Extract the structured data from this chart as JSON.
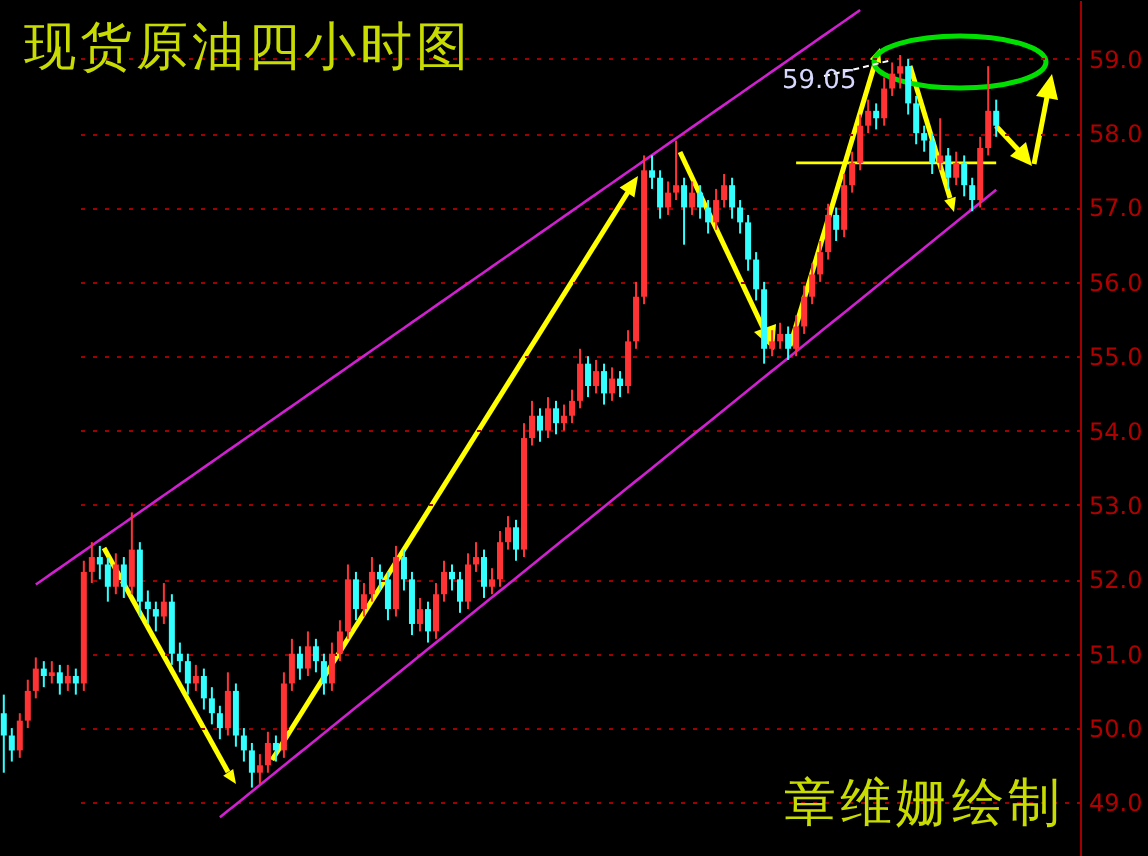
{
  "chart_data": {
    "type": "candlestick",
    "title": "现货原油四小时图",
    "annotations": [
      "59.05",
      "章维姗绘制"
    ],
    "series": [
      {
        "type": "line",
        "color": "#d020d0",
        "values": [
          null,
          null,
          null,
          null,
          51.93,
          52.005,
          52.08,
          52.155,
          52.23,
          52.305,
          52.38,
          52.455,
          52.53,
          52.605,
          52.68,
          52.755,
          52.83,
          52.905,
          52.98,
          53.055,
          53.13,
          53.205,
          53.28,
          53.355,
          53.43,
          53.505,
          53.58,
          53.655,
          53.73,
          53.805,
          53.88,
          53.955,
          54.03,
          54.105,
          54.18,
          54.255,
          54.33,
          54.405,
          54.48,
          54.555,
          54.63,
          54.705,
          54.78,
          54.855,
          54.93,
          55.005,
          55.08,
          55.155,
          55.23,
          55.305,
          55.38,
          55.455,
          55.53,
          55.605,
          55.68,
          55.755,
          55.83,
          55.905,
          55.98,
          56.055,
          56.13,
          56.205,
          56.28,
          56.355,
          56.43,
          56.505,
          56.58,
          56.655,
          56.73,
          56.805,
          56.88,
          56.955,
          57.03,
          57.105,
          57.18,
          57.255,
          57.33,
          57.405,
          57.48,
          57.555,
          57.63,
          57.705,
          57.78,
          57.855,
          57.93,
          58.005,
          58.08,
          58.155,
          58.23,
          58.305,
          58.38,
          58.455,
          58.53,
          58.605,
          58.68,
          58.755,
          58.83,
          58.905,
          58.98,
          59.055,
          59.13,
          59.205,
          59.28,
          59.355,
          59.43,
          59.505,
          59.58,
          59.655,
          null,
          null,
          null,
          null,
          null,
          null,
          null,
          null,
          null,
          null,
          null,
          null,
          null,
          null,
          null,
          null,
          null
        ]
      },
      {
        "type": "line",
        "color": "#d020d0",
        "values": [
          null,
          null,
          null,
          null,
          null,
          null,
          null,
          null,
          null,
          null,
          null,
          null,
          null,
          null,
          null,
          null,
          null,
          null,
          null,
          null,
          null,
          null,
          null,
          null,
          null,
          null,
          null,
          48.8,
          48.887,
          48.974,
          49.061,
          49.148,
          49.235,
          49.322,
          49.409,
          49.496,
          49.583,
          49.67,
          49.757,
          49.844,
          49.931,
          50.018,
          50.105,
          50.192,
          50.279,
          50.366,
          50.453,
          50.54,
          50.627,
          50.714,
          50.801,
          50.888,
          50.975,
          51.062,
          51.149,
          51.236,
          51.323,
          51.41,
          51.497,
          51.584,
          51.671,
          51.758,
          51.845,
          51.932,
          52.019,
          52.106,
          52.193,
          52.28,
          52.367,
          52.454,
          52.541,
          52.628,
          52.715,
          52.802,
          52.889,
          52.976,
          53.063,
          53.15,
          53.237,
          53.324,
          53.411,
          53.498,
          53.585,
          53.672,
          53.759,
          53.846,
          53.933,
          54.02,
          54.107,
          54.194,
          54.281,
          54.368,
          54.455,
          54.542,
          54.629,
          54.716,
          54.803,
          54.89,
          54.977,
          55.064,
          55.151,
          55.238,
          55.325,
          55.412,
          55.499,
          55.586,
          55.673,
          55.76,
          55.847,
          55.934,
          56.021,
          56.108,
          56.195,
          56.282,
          56.369,
          56.456,
          56.543,
          56.63,
          56.717,
          56.804,
          56.891,
          56.978,
          57.065,
          57.152,
          57.239
        ]
      },
      {
        "type": "line",
        "color": "#ffff00",
        "values": [
          null,
          null,
          null,
          null,
          null,
          null,
          null,
          null,
          null,
          null,
          null,
          null,
          null,
          null,
          null,
          null,
          null,
          null,
          null,
          null,
          null,
          null,
          null,
          null,
          null,
          null,
          null,
          null,
          null,
          null,
          null,
          null,
          null,
          null,
          null,
          null,
          null,
          null,
          null,
          null,
          null,
          null,
          null,
          null,
          null,
          null,
          null,
          null,
          null,
          null,
          null,
          null,
          null,
          null,
          null,
          null,
          null,
          null,
          null,
          null,
          null,
          null,
          null,
          null,
          null,
          null,
          null,
          null,
          null,
          null,
          null,
          null,
          null,
          null,
          null,
          null,
          null,
          null,
          null,
          null,
          null,
          null,
          null,
          null,
          null,
          null,
          null,
          null,
          null,
          null,
          null,
          null,
          null,
          null,
          null,
          null,
          null,
          null,
          null,
          57.6,
          57.6,
          57.6,
          57.6,
          57.6,
          57.6,
          57.6,
          57.6,
          57.6,
          57.6,
          57.6,
          57.6,
          57.6,
          57.6,
          57.6,
          57.6,
          57.6,
          57.6,
          57.6,
          57.6,
          57.6,
          57.6,
          57.6,
          57.6,
          57.6,
          57.6
        ]
      }
    ],
    "categories": [
      null,
      null,
      null,
      null,
      null,
      null,
      null,
      null,
      null,
      null,
      null,
      null,
      null,
      null,
      null,
      null,
      null,
      null,
      null,
      null,
      null,
      null,
      null,
      null,
      null,
      null,
      null,
      null,
      null,
      null,
      null,
      null,
      null,
      null,
      null,
      null,
      null,
      null,
      null,
      null,
      null,
      null,
      null,
      null,
      null,
      null,
      null,
      null,
      null,
      null,
      null,
      null,
      null,
      null,
      null,
      null,
      null,
      null,
      null,
      null,
      null,
      null,
      null,
      null,
      null,
      null,
      null,
      null,
      null,
      null,
      null,
      null,
      null,
      null,
      null,
      null,
      null,
      null,
      null,
      null,
      null,
      null,
      null,
      null,
      null,
      null,
      null,
      null,
      null,
      null,
      null,
      null,
      null,
      null,
      null,
      null,
      null,
      null,
      null,
      null,
      null,
      null,
      null,
      null,
      null,
      null,
      null,
      null,
      null,
      null,
      null,
      null,
      null,
      null,
      null,
      null,
      null,
      null,
      null,
      null,
      null,
      null,
      null,
      null,
      null
    ],
    "ohlc": [
      [
        50.2,
        50.45,
        49.4,
        49.9
      ],
      [
        49.9,
        50.0,
        49.55,
        49.7
      ],
      [
        49.7,
        50.2,
        49.6,
        50.1
      ],
      [
        50.1,
        50.65,
        50.0,
        50.5
      ],
      [
        50.5,
        50.95,
        50.4,
        50.8
      ],
      [
        50.8,
        50.9,
        50.55,
        50.7
      ],
      [
        50.7,
        50.9,
        50.6,
        50.75
      ],
      [
        50.75,
        50.85,
        50.45,
        50.6
      ],
      [
        50.6,
        50.85,
        50.5,
        50.7
      ],
      [
        50.7,
        50.8,
        50.45,
        50.6
      ],
      [
        50.6,
        52.25,
        50.5,
        52.1
      ],
      [
        52.1,
        52.5,
        51.95,
        52.3
      ],
      [
        52.3,
        52.45,
        52.0,
        52.2
      ],
      [
        52.2,
        52.3,
        51.7,
        51.9
      ],
      [
        51.9,
        52.35,
        51.8,
        52.2
      ],
      [
        52.2,
        52.3,
        51.75,
        51.9
      ],
      [
        51.9,
        52.9,
        51.8,
        52.4
      ],
      [
        52.4,
        52.5,
        51.5,
        51.7
      ],
      [
        51.7,
        51.85,
        51.4,
        51.6
      ],
      [
        51.6,
        51.7,
        51.3,
        51.5
      ],
      [
        51.5,
        51.95,
        51.4,
        51.7
      ],
      [
        51.7,
        51.8,
        50.85,
        51.0
      ],
      [
        51.0,
        51.15,
        50.75,
        50.9
      ],
      [
        50.9,
        51.0,
        50.45,
        50.6
      ],
      [
        50.6,
        50.85,
        50.5,
        50.7
      ],
      [
        50.7,
        50.8,
        50.25,
        50.4
      ],
      [
        50.4,
        50.55,
        50.05,
        50.2
      ],
      [
        50.2,
        50.3,
        49.85,
        50.0
      ],
      [
        50.0,
        50.75,
        49.9,
        50.5
      ],
      [
        50.5,
        50.6,
        49.75,
        49.9
      ],
      [
        49.9,
        50.0,
        49.55,
        49.7
      ],
      [
        49.7,
        49.8,
        49.2,
        49.4
      ],
      [
        49.4,
        49.65,
        49.25,
        49.5
      ],
      [
        49.5,
        49.95,
        49.4,
        49.8
      ],
      [
        49.8,
        49.9,
        49.55,
        49.7
      ],
      [
        49.7,
        50.75,
        49.6,
        50.6
      ],
      [
        50.6,
        51.2,
        50.5,
        51.0
      ],
      [
        51.0,
        51.1,
        50.65,
        50.8
      ],
      [
        50.8,
        51.3,
        50.7,
        51.1
      ],
      [
        51.1,
        51.2,
        50.75,
        50.9
      ],
      [
        50.9,
        51.0,
        50.45,
        50.6
      ],
      [
        50.6,
        51.15,
        50.5,
        51.0
      ],
      [
        51.0,
        51.45,
        50.9,
        51.3
      ],
      [
        51.3,
        52.2,
        51.2,
        52.0
      ],
      [
        52.0,
        52.1,
        51.45,
        51.6
      ],
      [
        51.6,
        51.95,
        51.5,
        51.8
      ],
      [
        51.8,
        52.3,
        51.7,
        52.1
      ],
      [
        52.1,
        52.2,
        51.85,
        52.0
      ],
      [
        52.0,
        52.1,
        51.45,
        51.6
      ],
      [
        51.6,
        52.45,
        51.5,
        52.3
      ],
      [
        52.3,
        52.4,
        51.85,
        52.0
      ],
      [
        52.0,
        52.1,
        51.25,
        51.4
      ],
      [
        51.4,
        51.75,
        51.3,
        51.6
      ],
      [
        51.6,
        51.7,
        51.15,
        51.3
      ],
      [
        51.3,
        51.95,
        51.2,
        51.8
      ],
      [
        51.8,
        52.25,
        51.7,
        52.1
      ],
      [
        52.1,
        52.2,
        51.85,
        52.0
      ],
      [
        52.0,
        52.1,
        51.55,
        51.7
      ],
      [
        51.7,
        52.35,
        51.6,
        52.2
      ],
      [
        52.2,
        52.5,
        52.1,
        52.3
      ],
      [
        52.3,
        52.4,
        51.75,
        51.9
      ],
      [
        51.9,
        52.15,
        51.8,
        52.0
      ],
      [
        52.0,
        52.65,
        51.9,
        52.5
      ],
      [
        52.5,
        52.85,
        52.4,
        52.7
      ],
      [
        52.7,
        52.8,
        52.25,
        52.4
      ],
      [
        52.4,
        54.1,
        52.3,
        53.9
      ],
      [
        53.9,
        54.4,
        53.8,
        54.2
      ],
      [
        54.2,
        54.3,
        53.85,
        54.0
      ],
      [
        54.0,
        54.45,
        53.9,
        54.3
      ],
      [
        54.3,
        54.4,
        53.95,
        54.1
      ],
      [
        54.1,
        54.35,
        54.0,
        54.2
      ],
      [
        54.2,
        54.55,
        54.1,
        54.4
      ],
      [
        54.4,
        55.1,
        54.3,
        54.9
      ],
      [
        54.9,
        55.0,
        54.45,
        54.6
      ],
      [
        54.6,
        54.95,
        54.5,
        54.8
      ],
      [
        54.8,
        54.9,
        54.35,
        54.5
      ],
      [
        54.5,
        54.85,
        54.4,
        54.7
      ],
      [
        54.7,
        54.8,
        54.45,
        54.6
      ],
      [
        54.6,
        55.35,
        54.5,
        55.2
      ],
      [
        55.2,
        56.0,
        55.1,
        55.8
      ],
      [
        55.8,
        57.7,
        55.7,
        57.5
      ],
      [
        57.5,
        57.7,
        57.25,
        57.4
      ],
      [
        57.4,
        57.5,
        56.85,
        57.0
      ],
      [
        57.0,
        57.35,
        56.9,
        57.2
      ],
      [
        57.2,
        57.9,
        57.1,
        57.3
      ],
      [
        57.3,
        57.4,
        56.5,
        57.0
      ],
      [
        57.0,
        57.35,
        56.9,
        57.2
      ],
      [
        57.2,
        57.3,
        56.85,
        57.0
      ],
      [
        57.0,
        57.1,
        56.65,
        56.8
      ],
      [
        56.8,
        57.25,
        56.7,
        57.1
      ],
      [
        57.1,
        57.45,
        57.0,
        57.3
      ],
      [
        57.3,
        57.4,
        56.85,
        57.0
      ],
      [
        57.0,
        57.1,
        56.65,
        56.8
      ],
      [
        56.8,
        56.9,
        56.15,
        56.3
      ],
      [
        56.3,
        56.4,
        55.75,
        55.9
      ],
      [
        55.9,
        56.0,
        54.9,
        55.1
      ],
      [
        55.1,
        55.35,
        55.0,
        55.2
      ],
      [
        55.2,
        55.45,
        55.1,
        55.3
      ],
      [
        55.3,
        55.4,
        54.95,
        55.1
      ],
      [
        55.1,
        55.55,
        55.0,
        55.4
      ],
      [
        55.4,
        55.95,
        55.3,
        55.8
      ],
      [
        55.8,
        56.25,
        55.7,
        56.1
      ],
      [
        56.1,
        56.55,
        56.0,
        56.4
      ],
      [
        56.4,
        57.05,
        56.3,
        56.9
      ],
      [
        56.9,
        57.0,
        56.55,
        56.7
      ],
      [
        56.7,
        57.45,
        56.6,
        57.3
      ],
      [
        57.3,
        57.75,
        57.2,
        57.6
      ],
      [
        57.6,
        58.25,
        57.5,
        58.1
      ],
      [
        58.1,
        58.45,
        58.0,
        58.3
      ],
      [
        58.3,
        58.4,
        58.05,
        58.2
      ],
      [
        58.2,
        58.75,
        58.1,
        58.6
      ],
      [
        58.6,
        58.95,
        58.5,
        58.8
      ],
      [
        58.8,
        59.05,
        58.6,
        58.9
      ],
      [
        58.9,
        59.0,
        58.25,
        58.4
      ],
      [
        58.4,
        58.5,
        57.85,
        58.0
      ],
      [
        58.0,
        58.1,
        57.75,
        57.9
      ],
      [
        57.9,
        58.0,
        57.45,
        57.6
      ],
      [
        57.6,
        58.2,
        57.5,
        57.7
      ],
      [
        57.7,
        57.8,
        57.25,
        57.4
      ],
      [
        57.4,
        57.75,
        57.3,
        57.6
      ],
      [
        57.6,
        57.7,
        57.15,
        57.3
      ],
      [
        57.3,
        57.4,
        56.95,
        57.1
      ],
      [
        57.1,
        57.95,
        57.0,
        57.8
      ],
      [
        57.8,
        58.9,
        57.7,
        58.3
      ],
      [
        58.3,
        58.45,
        57.95,
        58.1
      ]
    ],
    "colors": [
      "#33ffff",
      "#33ffff",
      "#ff3333",
      "#ff3333",
      "#ff3333",
      "#33ffff",
      "#ff3333",
      "#33ffff",
      "#ff3333",
      "#33ffff",
      "#ff3333",
      "#ff3333",
      "#33ffff",
      "#33ffff",
      "#ff3333",
      "#33ffff",
      "#ff3333",
      "#33ffff",
      "#33ffff",
      "#33ffff",
      "#ff3333",
      "#33ffff",
      "#33ffff",
      "#33ffff",
      "#ff3333",
      "#33ffff",
      "#33ffff",
      "#33ffff",
      "#ff3333",
      "#33ffff",
      "#33ffff",
      "#33ffff",
      "#ff3333",
      "#ff3333",
      "#33ffff",
      "#ff3333",
      "#ff3333",
      "#33ffff",
      "#ff3333",
      "#33ffff",
      "#33ffff",
      "#ff3333",
      "#ff3333",
      "#ff3333",
      "#33ffff",
      "#ff3333",
      "#ff3333",
      "#33ffff",
      "#33ffff",
      "#ff3333",
      "#33ffff",
      "#33ffff",
      "#ff3333",
      "#33ffff",
      "#ff3333",
      "#ff3333",
      "#33ffff",
      "#33ffff",
      "#ff3333",
      "#ff3333",
      "#33ffff",
      "#ff3333",
      "#ff3333",
      "#ff3333",
      "#33ffff",
      "#ff3333",
      "#ff3333",
      "#33ffff",
      "#ff3333",
      "#33ffff",
      "#ff3333",
      "#ff3333",
      "#ff3333",
      "#33ffff",
      "#ff3333",
      "#33ffff",
      "#ff3333",
      "#33ffff",
      "#ff3333",
      "#ff3333",
      "#ff3333",
      "#33ffff",
      "#33ffff",
      "#ff3333",
      "#ff3333",
      "#33ffff",
      "#ff3333",
      "#33ffff",
      "#33ffff",
      "#ff3333",
      "#ff3333",
      "#33ffff",
      "#33ffff",
      "#33ffff",
      "#33ffff",
      "#33ffff",
      "#ff3333",
      "#ff3333",
      "#33ffff",
      "#ff3333",
      "#ff3333",
      "#ff3333",
      "#ff3333",
      "#ff3333",
      "#33ffff",
      "#ff3333",
      "#ff3333",
      "#ff3333",
      "#ff3333",
      "#33ffff",
      "#ff3333",
      "#ff3333",
      "#ff3333",
      "#33ffff",
      "#33ffff",
      "#33ffff",
      "#33ffff",
      "#ff3333",
      "#33ffff",
      "#ff3333",
      "#33ffff",
      "#33ffff",
      "#ff3333",
      "#ff3333",
      "#33ffff"
    ],
    "ylim": [
      48.28,
      59.79
    ],
    "yticks": [
      {
        "value": 49,
        "label": "49.0"
      },
      {
        "value": 50,
        "label": "50.0"
      },
      {
        "value": 51,
        "label": "51.0"
      },
      {
        "value": 52,
        "label": "52.0"
      },
      {
        "value": 53,
        "label": "53.0"
      },
      {
        "value": 54,
        "label": "54.0"
      },
      {
        "value": 55,
        "label": "55.0"
      },
      {
        "value": 56,
        "label": "56.0"
      },
      {
        "value": 57,
        "label": "57.0"
      },
      {
        "value": 58,
        "label": "58.0"
      },
      {
        "value": 59,
        "label": "59.0"
      }
    ],
    "grid": "y",
    "tick_labels": "y"
  }
}
